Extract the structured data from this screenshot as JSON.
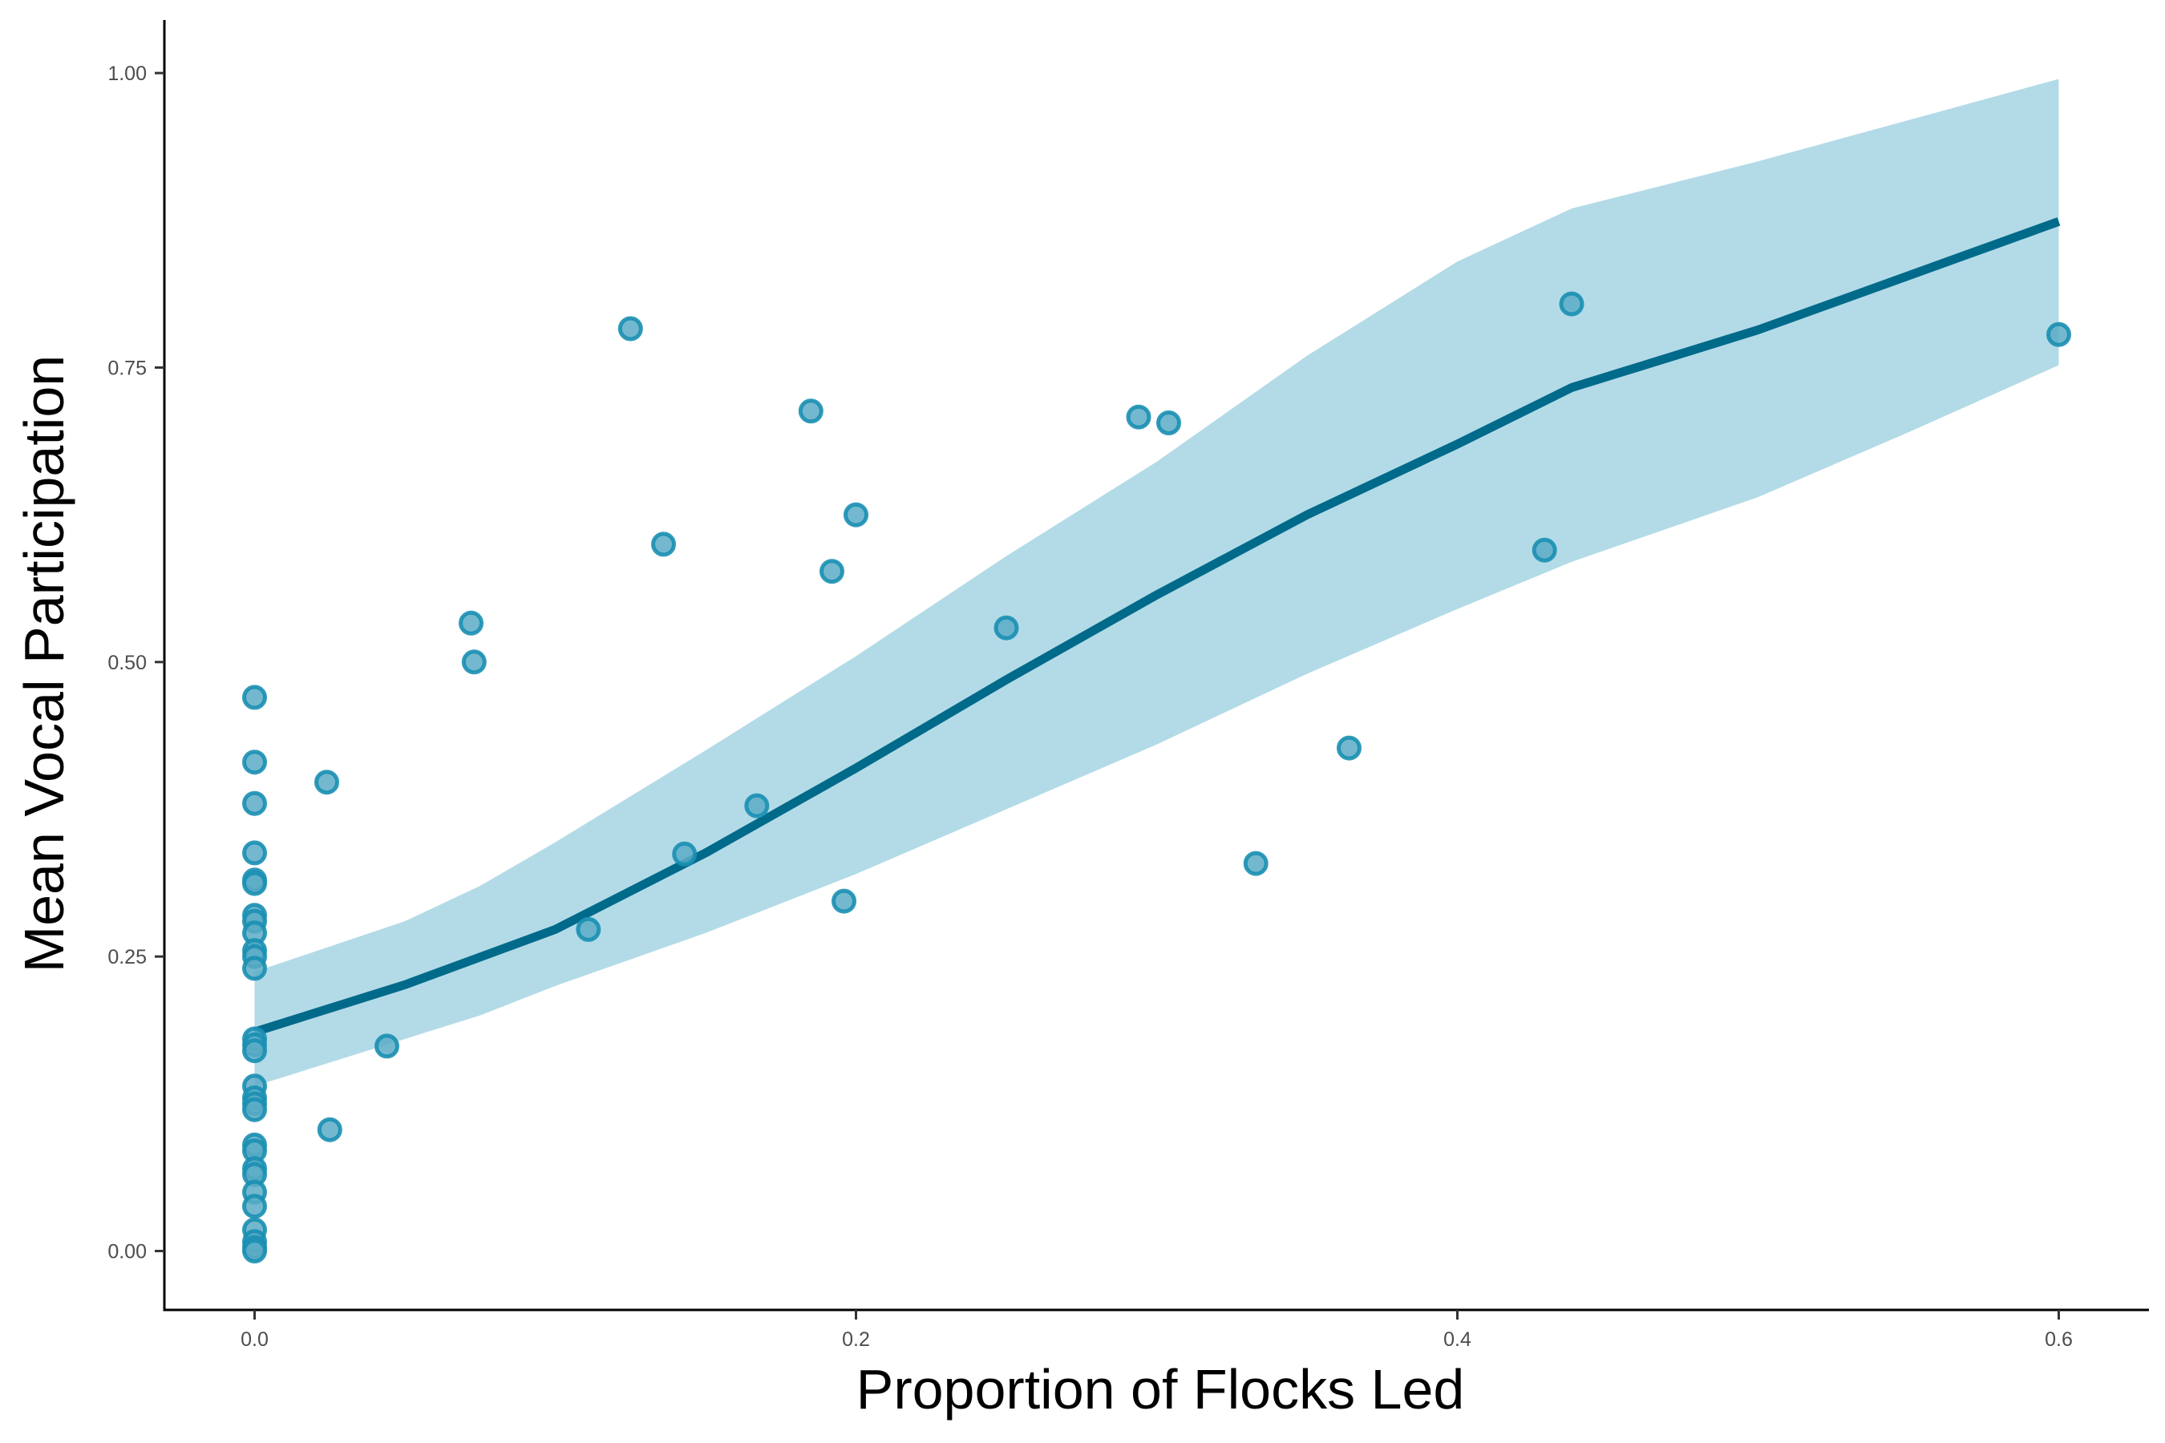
{
  "chart_data": {
    "type": "scatter",
    "xlabel": "Proportion of Flocks Led",
    "ylabel": "Mean Vocal Participation",
    "xlim": [
      -0.03,
      0.63
    ],
    "ylim": [
      -0.05,
      1.045
    ],
    "x_ticks": [
      0.0,
      0.2,
      0.4,
      0.6
    ],
    "x_tick_labels": [
      "0.0",
      "0.2",
      "0.4",
      "0.6"
    ],
    "y_ticks": [
      0.0,
      0.25,
      0.5,
      0.75,
      1.0
    ],
    "y_tick_labels": [
      "0.00",
      "0.25",
      "0.50",
      "0.75",
      "1.00"
    ],
    "grid": false,
    "legend": "none",
    "colors": {
      "point_fill": "#5aabc6",
      "point_stroke": "#1a8fb3",
      "line": "#006a8b",
      "band": "#b3dbe7",
      "axis": "#000000"
    },
    "points": [
      {
        "x": 0.0,
        "y": 0.47
      },
      {
        "x": 0.0,
        "y": 0.415
      },
      {
        "x": 0.0,
        "y": 0.38
      },
      {
        "x": 0.0,
        "y": 0.338
      },
      {
        "x": 0.0,
        "y": 0.315
      },
      {
        "x": 0.0,
        "y": 0.312
      },
      {
        "x": 0.0,
        "y": 0.285
      },
      {
        "x": 0.0,
        "y": 0.28
      },
      {
        "x": 0.0,
        "y": 0.27
      },
      {
        "x": 0.0,
        "y": 0.255
      },
      {
        "x": 0.0,
        "y": 0.25
      },
      {
        "x": 0.0,
        "y": 0.24
      },
      {
        "x": 0.0,
        "y": 0.18
      },
      {
        "x": 0.0,
        "y": 0.175
      },
      {
        "x": 0.0,
        "y": 0.17
      },
      {
        "x": 0.0,
        "y": 0.14
      },
      {
        "x": 0.0,
        "y": 0.13
      },
      {
        "x": 0.0,
        "y": 0.125
      },
      {
        "x": 0.0,
        "y": 0.12
      },
      {
        "x": 0.0,
        "y": 0.09
      },
      {
        "x": 0.0,
        "y": 0.085
      },
      {
        "x": 0.0,
        "y": 0.07
      },
      {
        "x": 0.0,
        "y": 0.065
      },
      {
        "x": 0.0,
        "y": 0.05
      },
      {
        "x": 0.0,
        "y": 0.038
      },
      {
        "x": 0.0,
        "y": 0.018
      },
      {
        "x": 0.0,
        "y": 0.008
      },
      {
        "x": 0.0,
        "y": 0.003
      },
      {
        "x": 0.0,
        "y": 0.0
      },
      {
        "x": 0.024,
        "y": 0.398
      },
      {
        "x": 0.025,
        "y": 0.103
      },
      {
        "x": 0.044,
        "y": 0.174
      },
      {
        "x": 0.072,
        "y": 0.533
      },
      {
        "x": 0.073,
        "y": 0.5
      },
      {
        "x": 0.111,
        "y": 0.273
      },
      {
        "x": 0.125,
        "y": 0.783
      },
      {
        "x": 0.136,
        "y": 0.6
      },
      {
        "x": 0.143,
        "y": 0.337
      },
      {
        "x": 0.167,
        "y": 0.378
      },
      {
        "x": 0.185,
        "y": 0.713
      },
      {
        "x": 0.192,
        "y": 0.577
      },
      {
        "x": 0.196,
        "y": 0.297
      },
      {
        "x": 0.2,
        "y": 0.625
      },
      {
        "x": 0.25,
        "y": 0.529
      },
      {
        "x": 0.294,
        "y": 0.708
      },
      {
        "x": 0.304,
        "y": 0.703
      },
      {
        "x": 0.333,
        "y": 0.329
      },
      {
        "x": 0.364,
        "y": 0.427
      },
      {
        "x": 0.429,
        "y": 0.595
      },
      {
        "x": 0.438,
        "y": 0.804
      },
      {
        "x": 0.6,
        "y": 0.778
      }
    ],
    "fit_line": {
      "x": [
        0.0,
        0.05,
        0.1,
        0.15,
        0.2,
        0.25,
        0.3,
        0.35,
        0.4,
        0.438,
        0.5,
        0.55,
        0.6
      ],
      "y": [
        0.186,
        0.226,
        0.273,
        0.338,
        0.41,
        0.485,
        0.557,
        0.625,
        0.685,
        0.733,
        0.782,
        0.828,
        0.874
      ]
    },
    "ci_band": {
      "x": [
        0.0,
        0.05,
        0.075,
        0.1,
        0.15,
        0.2,
        0.25,
        0.3,
        0.35,
        0.4,
        0.438,
        0.5,
        0.55,
        0.6
      ],
      "upper": [
        0.237,
        0.28,
        0.31,
        0.347,
        0.425,
        0.505,
        0.59,
        0.67,
        0.76,
        0.84,
        0.885,
        0.925,
        0.96,
        0.995
      ],
      "lower": [
        0.14,
        0.18,
        0.2,
        0.225,
        0.27,
        0.32,
        0.375,
        0.43,
        0.49,
        0.545,
        0.585,
        0.64,
        0.695,
        0.752
      ]
    }
  }
}
